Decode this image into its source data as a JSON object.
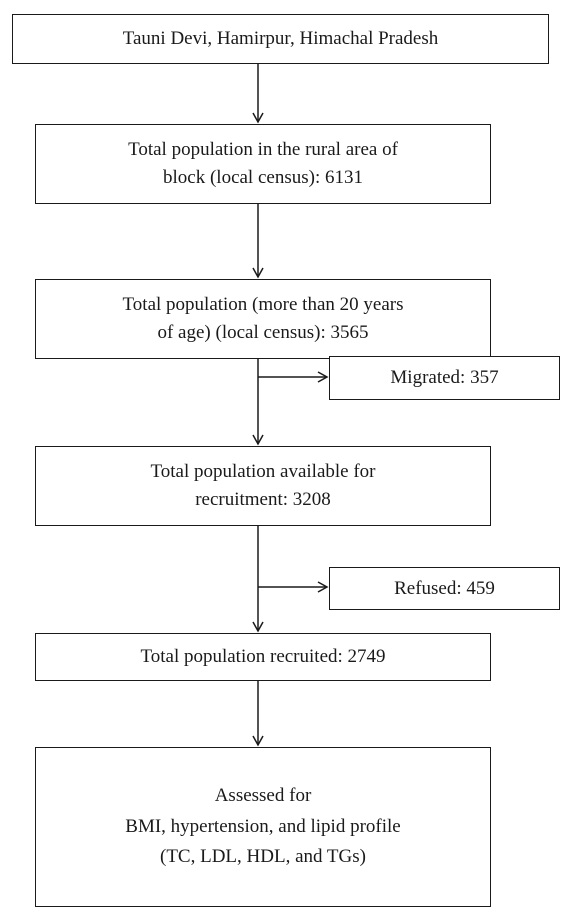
{
  "flowchart": {
    "location": "Tauni Devi, Hamirpur, Himachal Pradesh",
    "rural_population": "Total population in the rural area of\nblock (local census): 6131",
    "adult_population": "Total population (more than 20 years\nof age) (local census): 3565",
    "migrated": "Migrated: 357",
    "available": "Total population available for\nrecruitment: 3208",
    "refused": "Refused: 459",
    "recruited": "Total population recruited: 2749",
    "assessed": "Assessed for\nBMI, hypertension, and lipid profile\n(TC, LDL, HDL, and TGs)"
  },
  "colors": {
    "stroke": "#1a1a1a",
    "background": "#ffffff"
  }
}
